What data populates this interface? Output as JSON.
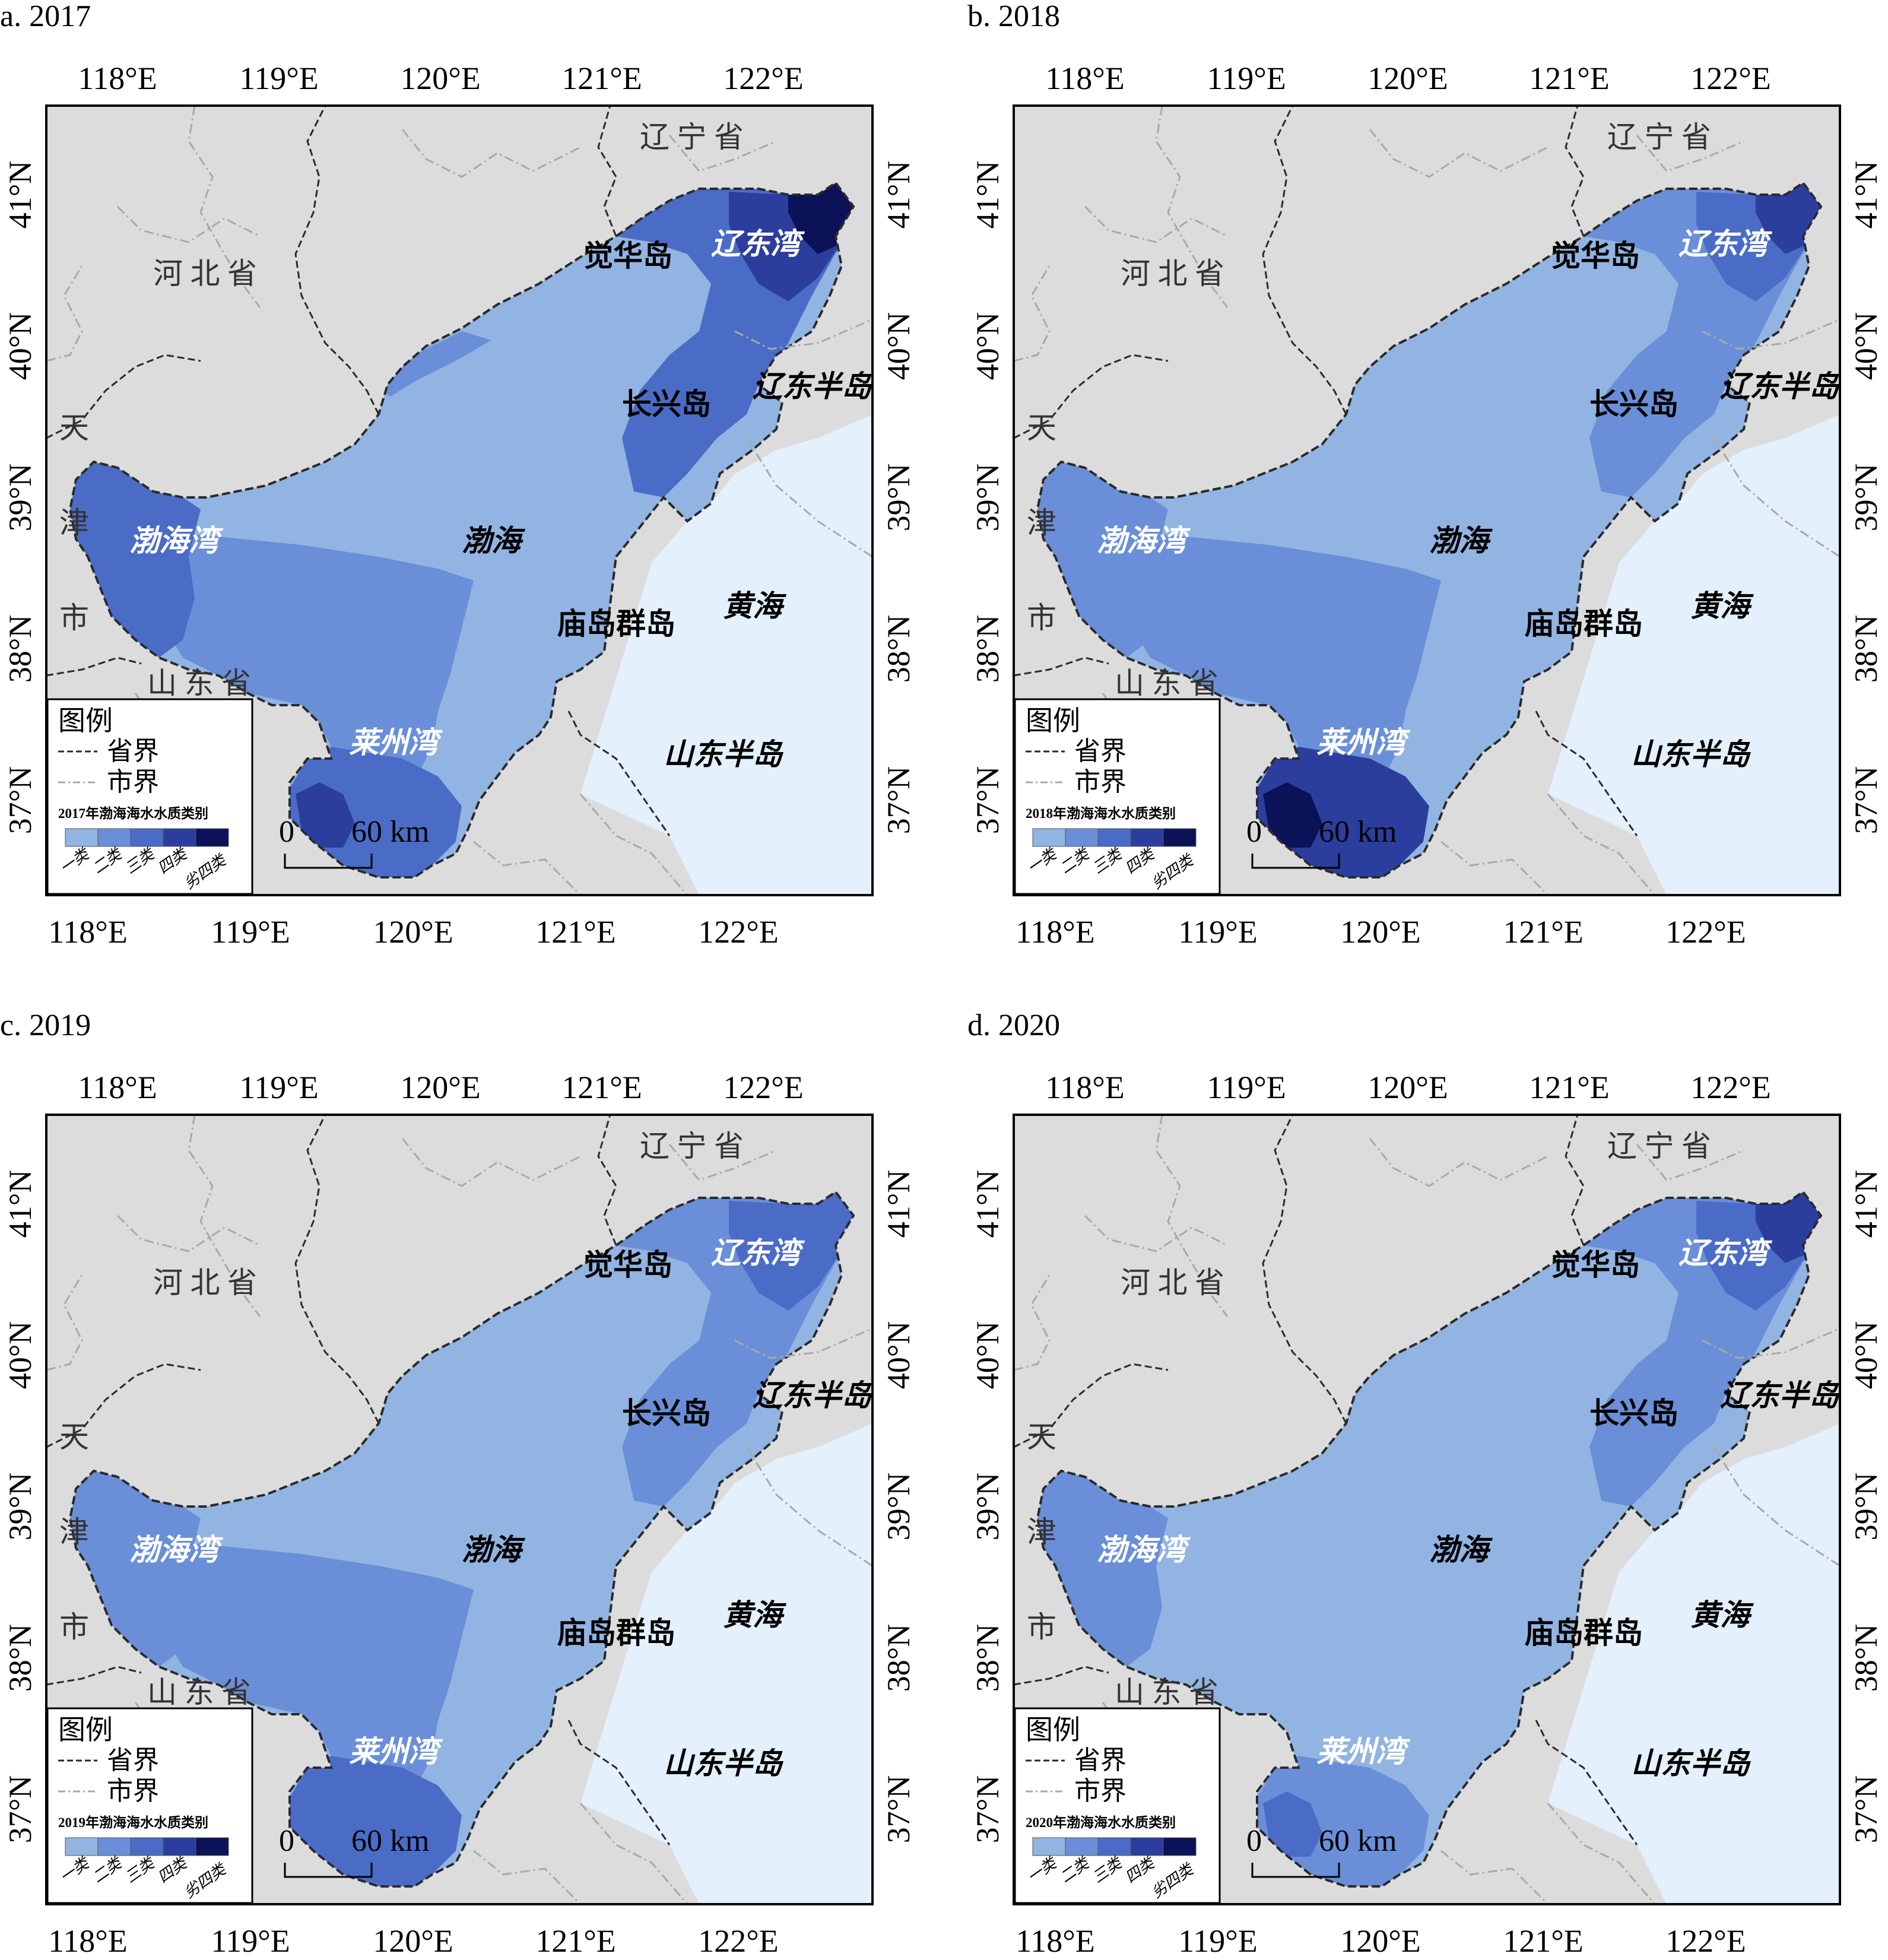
{
  "colors": {
    "land": "#dcdcdc",
    "yellow_sea": "#e4f0fb",
    "class1": "#92b4e2",
    "class2": "#6a8fd8",
    "class3": "#4a6cc7",
    "class4": "#2b3e9e",
    "class5": "#0c1258",
    "province_line": "#2a2a2a",
    "city_line": "#a9a9a9"
  },
  "axes": {
    "top_lon": [
      "118°E",
      "119°E",
      "120°E",
      "121°E",
      "122°E"
    ],
    "bottom_lon": [
      "118°E",
      "119°E",
      "120°E",
      "121°E",
      "122°E"
    ],
    "lat": [
      "41°N",
      "40°N",
      "39°N",
      "38°N",
      "37°N"
    ]
  },
  "labels": {
    "liaoning": "辽 宁 省",
    "hebei": "河 北 省",
    "shandong": "山 东 省",
    "tianjin": [
      "天",
      "津",
      "市"
    ],
    "liaodong_peninsula": "辽东半岛",
    "shandong_peninsula": "山东半岛",
    "juehua": "觉华岛",
    "changxing": "长兴岛",
    "miaodao": "庙岛群岛",
    "bohai": "渤海",
    "yellow_sea": "黄海",
    "liaodong_bay": "辽东湾",
    "bohai_bay": "渤海湾",
    "laizhou_bay": "莱州湾"
  },
  "legend": {
    "title": "图例",
    "province_boundary": "省界",
    "city_boundary": "市界",
    "classes": [
      "一类",
      "二类",
      "三类",
      "四类",
      "劣四类"
    ]
  },
  "scale_bar": {
    "zero": "0",
    "distance": "60 km"
  },
  "panels": [
    {
      "id": "a",
      "title": "a. 2017",
      "legend_caption": "2017年渤海海水水质类别",
      "levels": {
        "base": 1,
        "liaodong_bay": 3,
        "liaodong_head": 4,
        "liaodong_core": 5,
        "bohai_bay": 3,
        "laizhou_bay": 3,
        "laizhou_core": 4,
        "central_south": 2,
        "northwest_coast": 2
      }
    },
    {
      "id": "b",
      "title": "b. 2018",
      "legend_caption": "2018年渤海海水水质类别",
      "levels": {
        "base": 1,
        "liaodong_bay": 2,
        "liaodong_head": 3,
        "liaodong_core": 4,
        "bohai_bay": 2,
        "laizhou_bay": 4,
        "laizhou_core": 5,
        "central_south": 2,
        "northwest_coast": 1
      }
    },
    {
      "id": "c",
      "title": "c. 2019",
      "legend_caption": "2019年渤海海水水质类别",
      "levels": {
        "base": 1,
        "liaodong_bay": 2,
        "liaodong_head": 3,
        "liaodong_core": 3,
        "bohai_bay": 2,
        "laizhou_bay": 3,
        "laizhou_core": 3,
        "central_south": 2,
        "northwest_coast": 1
      }
    },
    {
      "id": "d",
      "title": "d. 2020",
      "legend_caption": "2020年渤海海水水质类别",
      "levels": {
        "base": 1,
        "liaodong_bay": 2,
        "liaodong_head": 3,
        "liaodong_core": 4,
        "bohai_bay": 2,
        "laizhou_bay": 2,
        "laizhou_core": 3,
        "central_south": 1,
        "northwest_coast": 1
      }
    }
  ]
}
